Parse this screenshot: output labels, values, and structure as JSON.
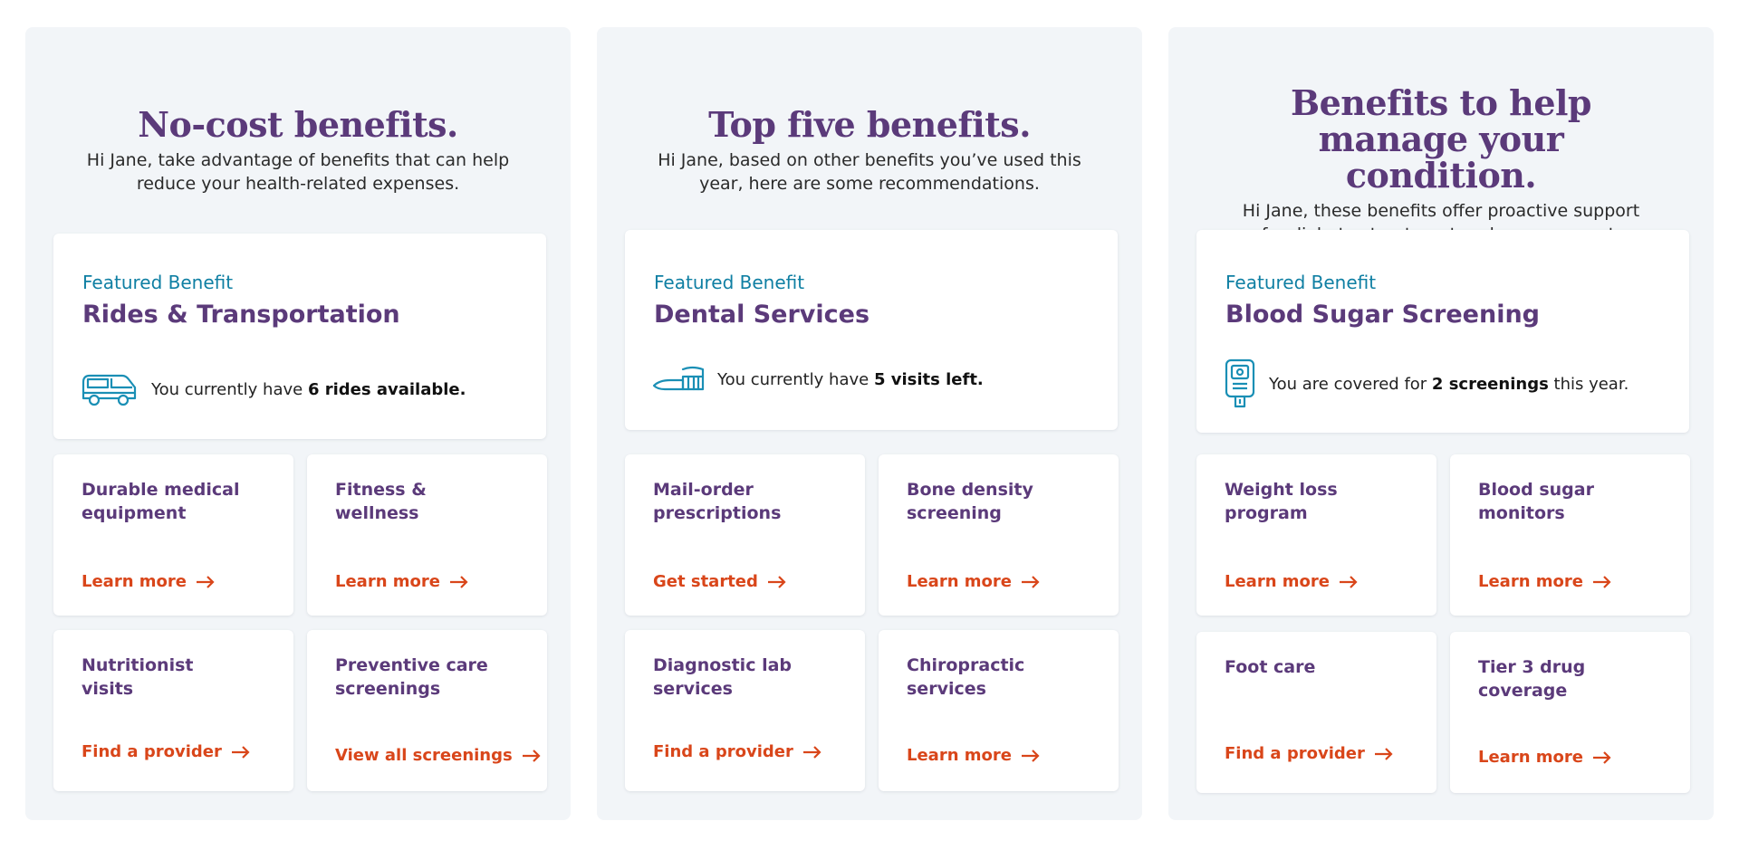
{
  "panels": [
    {
      "title": "No-cost benefits.",
      "subtitle": "Hi Jane, take advantage of benefits that can help reduce your health-related expenses.",
      "featured": {
        "label": "Featured Benefit",
        "name": "Rides & Transportation",
        "icon": "van-icon",
        "text_before": "You currently have ",
        "text_bold": "6 rides available.",
        "text_after": ""
      },
      "items": [
        {
          "name": "Durable medical equipment",
          "link": "Learn more"
        },
        {
          "name": "Fitness & wellness",
          "link": "Learn more"
        },
        {
          "name": "Nutritionist visits",
          "link": "Find a provider"
        },
        {
          "name": "Preventive care screenings",
          "link": "View all screenings"
        }
      ]
    },
    {
      "title": "Top five benefits.",
      "subtitle": "Hi Jane, based on other benefits you’ve used this year, here are some recommendations.",
      "featured": {
        "label": "Featured Benefit",
        "name": "Dental Services",
        "icon": "toothbrush-icon",
        "text_before": "You currently have ",
        "text_bold": "5 visits left.",
        "text_after": ""
      },
      "items": [
        {
          "name": "Mail-order prescriptions",
          "link": "Get started"
        },
        {
          "name": "Bone density screening",
          "link": "Learn more"
        },
        {
          "name": "Diagnostic lab services",
          "link": "Find a provider"
        },
        {
          "name": "Chiropractic services",
          "link": "Learn more"
        }
      ]
    },
    {
      "title": "Benefits to help manage your condition.",
      "subtitle": "Hi Jane, these benefits offer proactive support for diabetes treatment and management.",
      "featured": {
        "label": "Featured Benefit",
        "name": "Blood Sugar Screening",
        "icon": "glucose-meter-icon",
        "text_before": "You are covered for ",
        "text_bold": "2 screenings",
        "text_after": " this year."
      },
      "items": [
        {
          "name": "Weight loss program",
          "link": "Learn more"
        },
        {
          "name": "Blood sugar monitors",
          "link": "Learn more"
        },
        {
          "name": "Foot care",
          "link": "Find a provider"
        },
        {
          "name": "Tier 3 drug coverage",
          "link": "Learn more"
        }
      ]
    }
  ],
  "colors": {
    "title_purple": "#5b3a7a",
    "featured_label_teal": "#0f7fa3",
    "link_orange": "#d9461a",
    "panel_bg": "#f2f5f8",
    "icon_blue": "#1a8fb5"
  }
}
